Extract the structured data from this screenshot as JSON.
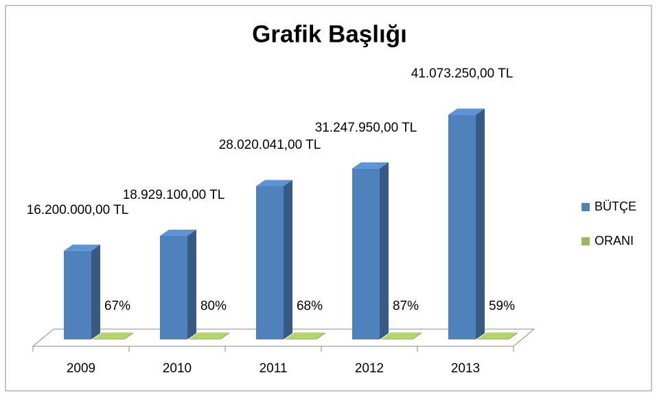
{
  "chart_data": {
    "type": "bar3d",
    "title": "Grafik Başlığı",
    "categories": [
      "2009",
      "2010",
      "2011",
      "2012",
      "2013"
    ],
    "series": [
      {
        "name": "BÜTÇE",
        "color": "#4f81bd",
        "values": [
          16200000,
          18929100,
          28020041,
          31247950,
          41073250
        ],
        "value_labels": [
          "16.200.000,00 TL",
          "18.929.100,00 TL",
          "28.020.041,00 TL",
          "31.247.950,00 TL",
          "41.073.250,00 TL"
        ]
      },
      {
        "name": "ORANI",
        "color": "#9bbb59",
        "values": [
          67,
          80,
          68,
          87,
          59
        ],
        "value_labels": [
          "67%",
          "80%",
          "68%",
          "87%",
          "59%"
        ]
      }
    ],
    "ylim": [
      0,
      45000000
    ],
    "legend": "right"
  }
}
